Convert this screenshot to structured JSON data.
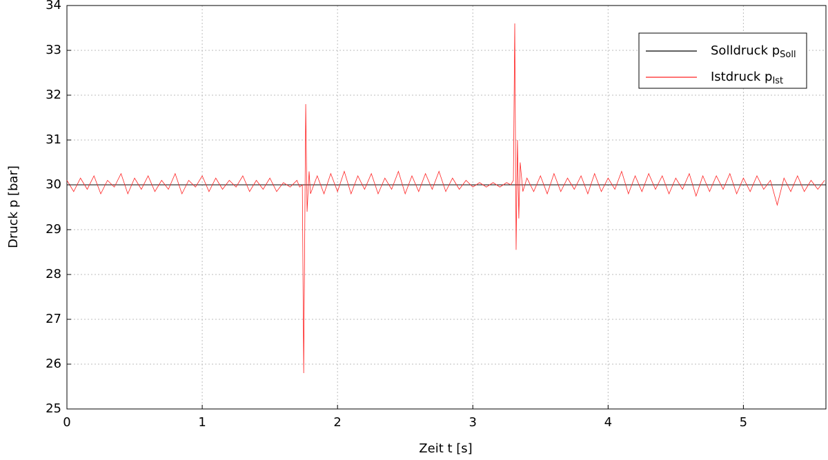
{
  "chart_data": {
    "type": "line",
    "xlabel": "Zeit t [s]",
    "ylabel": "Druck p [bar]",
    "xlim": [
      0,
      5.61
    ],
    "ylim": [
      25,
      34
    ],
    "xticks": [
      0,
      1,
      2,
      3,
      4,
      5
    ],
    "yticks": [
      25,
      26,
      27,
      28,
      29,
      30,
      31,
      32,
      33,
      34
    ],
    "grid": true,
    "legend": "upper right",
    "series": [
      {
        "name": "Solldruck p",
        "subscript": "Soll",
        "color": "#000000",
        "x": [
          0,
          5.61
        ],
        "values": [
          30,
          30
        ]
      },
      {
        "name": "Istdruck p",
        "subscript": "Ist",
        "color": "#ff2020",
        "x": [
          0,
          0.05,
          0.1,
          0.15,
          0.2,
          0.25,
          0.3,
          0.35,
          0.4,
          0.45,
          0.5,
          0.55,
          0.6,
          0.65,
          0.7,
          0.75,
          0.8,
          0.85,
          0.9,
          0.95,
          1,
          1.05,
          1.1,
          1.15,
          1.2,
          1.25,
          1.3,
          1.35,
          1.4,
          1.45,
          1.5,
          1.55,
          1.6,
          1.65,
          1.7,
          1.72,
          1.74,
          1.75,
          1.765,
          1.775,
          1.79,
          1.8,
          1.85,
          1.9,
          1.95,
          2,
          2.05,
          2.1,
          2.15,
          2.2,
          2.25,
          2.3,
          2.35,
          2.4,
          2.45,
          2.5,
          2.55,
          2.6,
          2.65,
          2.7,
          2.75,
          2.8,
          2.85,
          2.9,
          2.95,
          3,
          3.05,
          3.1,
          3.15,
          3.2,
          3.25,
          3.28,
          3.3,
          3.31,
          3.32,
          3.33,
          3.34,
          3.35,
          3.37,
          3.4,
          3.45,
          3.5,
          3.55,
          3.6,
          3.65,
          3.7,
          3.75,
          3.8,
          3.85,
          3.9,
          3.95,
          4,
          4.05,
          4.1,
          4.15,
          4.2,
          4.25,
          4.3,
          4.35,
          4.4,
          4.45,
          4.5,
          4.55,
          4.6,
          4.65,
          4.7,
          4.75,
          4.8,
          4.85,
          4.9,
          4.95,
          5,
          5.05,
          5.1,
          5.15,
          5.2,
          5.25,
          5.3,
          5.35,
          5.4,
          5.45,
          5.5,
          5.55,
          5.6
        ],
        "values": [
          30.1,
          29.85,
          30.15,
          29.9,
          30.2,
          29.8,
          30.1,
          29.95,
          30.25,
          29.8,
          30.15,
          29.9,
          30.2,
          29.85,
          30.1,
          29.9,
          30.25,
          29.8,
          30.1,
          29.95,
          30.2,
          29.85,
          30.15,
          29.9,
          30.1,
          29.95,
          30.2,
          29.85,
          30.1,
          29.9,
          30.15,
          29.85,
          30.05,
          29.95,
          30.1,
          29.95,
          30.0,
          25.8,
          31.8,
          29.4,
          30.3,
          29.8,
          30.2,
          29.8,
          30.25,
          29.85,
          30.3,
          29.8,
          30.2,
          29.9,
          30.25,
          29.8,
          30.15,
          29.9,
          30.3,
          29.8,
          30.2,
          29.85,
          30.25,
          29.9,
          30.3,
          29.85,
          30.15,
          29.9,
          30.1,
          29.95,
          30.05,
          29.95,
          30.05,
          29.95,
          30.05,
          30.0,
          30.1,
          33.6,
          28.55,
          31.0,
          29.25,
          30.5,
          29.85,
          30.15,
          29.85,
          30.2,
          29.8,
          30.25,
          29.85,
          30.15,
          29.9,
          30.2,
          29.8,
          30.25,
          29.85,
          30.15,
          29.9,
          30.3,
          29.8,
          30.2,
          29.85,
          30.25,
          29.9,
          30.2,
          29.8,
          30.15,
          29.9,
          30.25,
          29.75,
          30.2,
          29.85,
          30.2,
          29.9,
          30.25,
          29.8,
          30.15,
          29.85,
          30.2,
          29.9,
          30.1,
          29.55,
          30.15,
          29.85,
          30.2,
          29.85,
          30.1,
          29.9,
          30.1
        ]
      }
    ]
  }
}
